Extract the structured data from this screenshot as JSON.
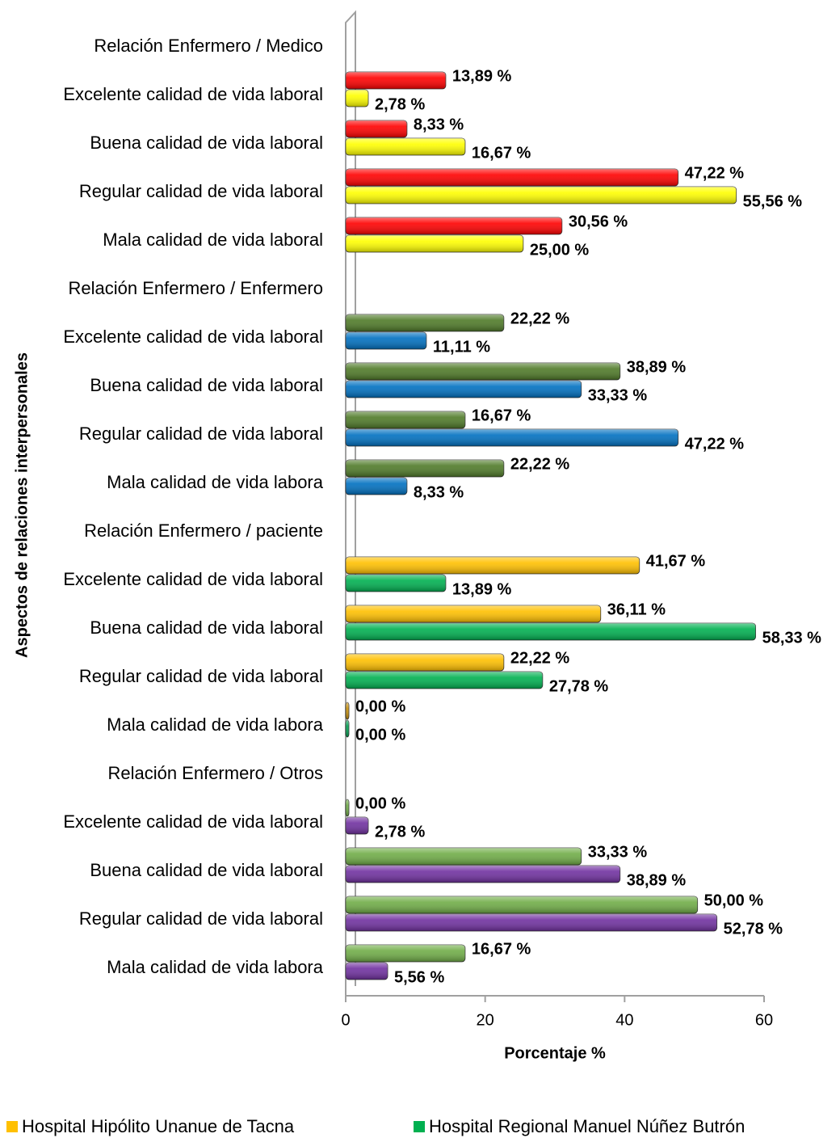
{
  "chart_data": {
    "type": "hbar",
    "y_label": "Aspectos de relaciones interpersonales",
    "x_label": "Porcentaje %",
    "categories": [
      "Relación Enfermero / Medico",
      "Excelente calidad de vida laboral",
      "Buena calidad de vida laboral",
      "Regular calidad de vida laboral",
      "Mala calidad de vida laboral",
      "Relación Enfermero / Enfermero",
      "Excelente calidad de vida laboral",
      "Buena calidad de vida laboral",
      "Regular calidad de vida laboral",
      "Mala calidad de vida labora",
      "Relación Enfermero / paciente",
      "Excelente calidad de vida laboral",
      "Buena calidad de vida laboral",
      "Regular calidad de vida laboral",
      "Mala calidad de vida labora",
      "Relación Enfermero / Otros",
      "Excelente calidad de vida laboral",
      "Buena calidad de vida laboral",
      "Regular calidad de vida laboral",
      "Mala calidad de vida labora"
    ],
    "series": [
      {
        "name": "Hospital Hipólito Unanue de Tacna",
        "color": "#ffc000",
        "colors": [
          null,
          "#ff0000",
          "#ff0000",
          "#ff0000",
          "#ff0000",
          null,
          "#4f7a28",
          "#4f7a28",
          "#4f7a28",
          "#4f7a28",
          null,
          "#ffc000",
          "#ffc000",
          "#ffc000",
          "#c8900a",
          null,
          "#70ad47",
          "#70ad47",
          "#70ad47",
          "#70ad47"
        ],
        "values": [
          null,
          13.89,
          8.33,
          47.22,
          30.56,
          null,
          22.22,
          38.89,
          16.67,
          22.22,
          null,
          41.67,
          36.11,
          22.22,
          0.0,
          null,
          0.0,
          33.33,
          50.0,
          16.67
        ],
        "value_labels": [
          null,
          "13,89 %",
          "8,33 %",
          "47,22 %",
          "30,56 %",
          null,
          "22,22 %",
          "38,89 %",
          "16,67 %",
          "22,22 %",
          null,
          "41,67 %",
          "36,11 %",
          "22,22 %",
          "0,00 %",
          null,
          "0,00 %",
          "33,33 %",
          "50,00 %",
          "16,67 %"
        ]
      },
      {
        "name": "Hospital Regional Manuel Núñez Butrón",
        "color": "#00b050",
        "colors": [
          null,
          "#ffff00",
          "#ffff00",
          "#ffff00",
          "#ffff00",
          null,
          "#0070c0",
          "#0070c0",
          "#0070c0",
          "#0070c0",
          null,
          "#00b050",
          "#00b050",
          "#00b050",
          "#00a050",
          null,
          "#7030a0",
          "#7030a0",
          "#7030a0",
          "#7030a0"
        ],
        "values": [
          null,
          2.78,
          16.67,
          55.56,
          25.0,
          null,
          11.11,
          33.33,
          47.22,
          8.33,
          null,
          13.89,
          58.33,
          27.78,
          0.0,
          null,
          2.78,
          38.89,
          52.78,
          5.56
        ],
        "value_labels": [
          null,
          "2,78 %",
          "16,67 %",
          "55,56 %",
          "25,00 %",
          null,
          "11,11 %",
          "33,33 %",
          "47,22 %",
          "8,33 %",
          null,
          "13,89 %",
          "58,33 %",
          "27,78 %",
          "0,00 %",
          null,
          "2,78 %",
          "38,89 %",
          "52,78 %",
          "5,56 %"
        ]
      }
    ],
    "xlim": [
      0,
      60
    ],
    "xticks": [
      0,
      20,
      40,
      60
    ],
    "legend": "bottom"
  }
}
